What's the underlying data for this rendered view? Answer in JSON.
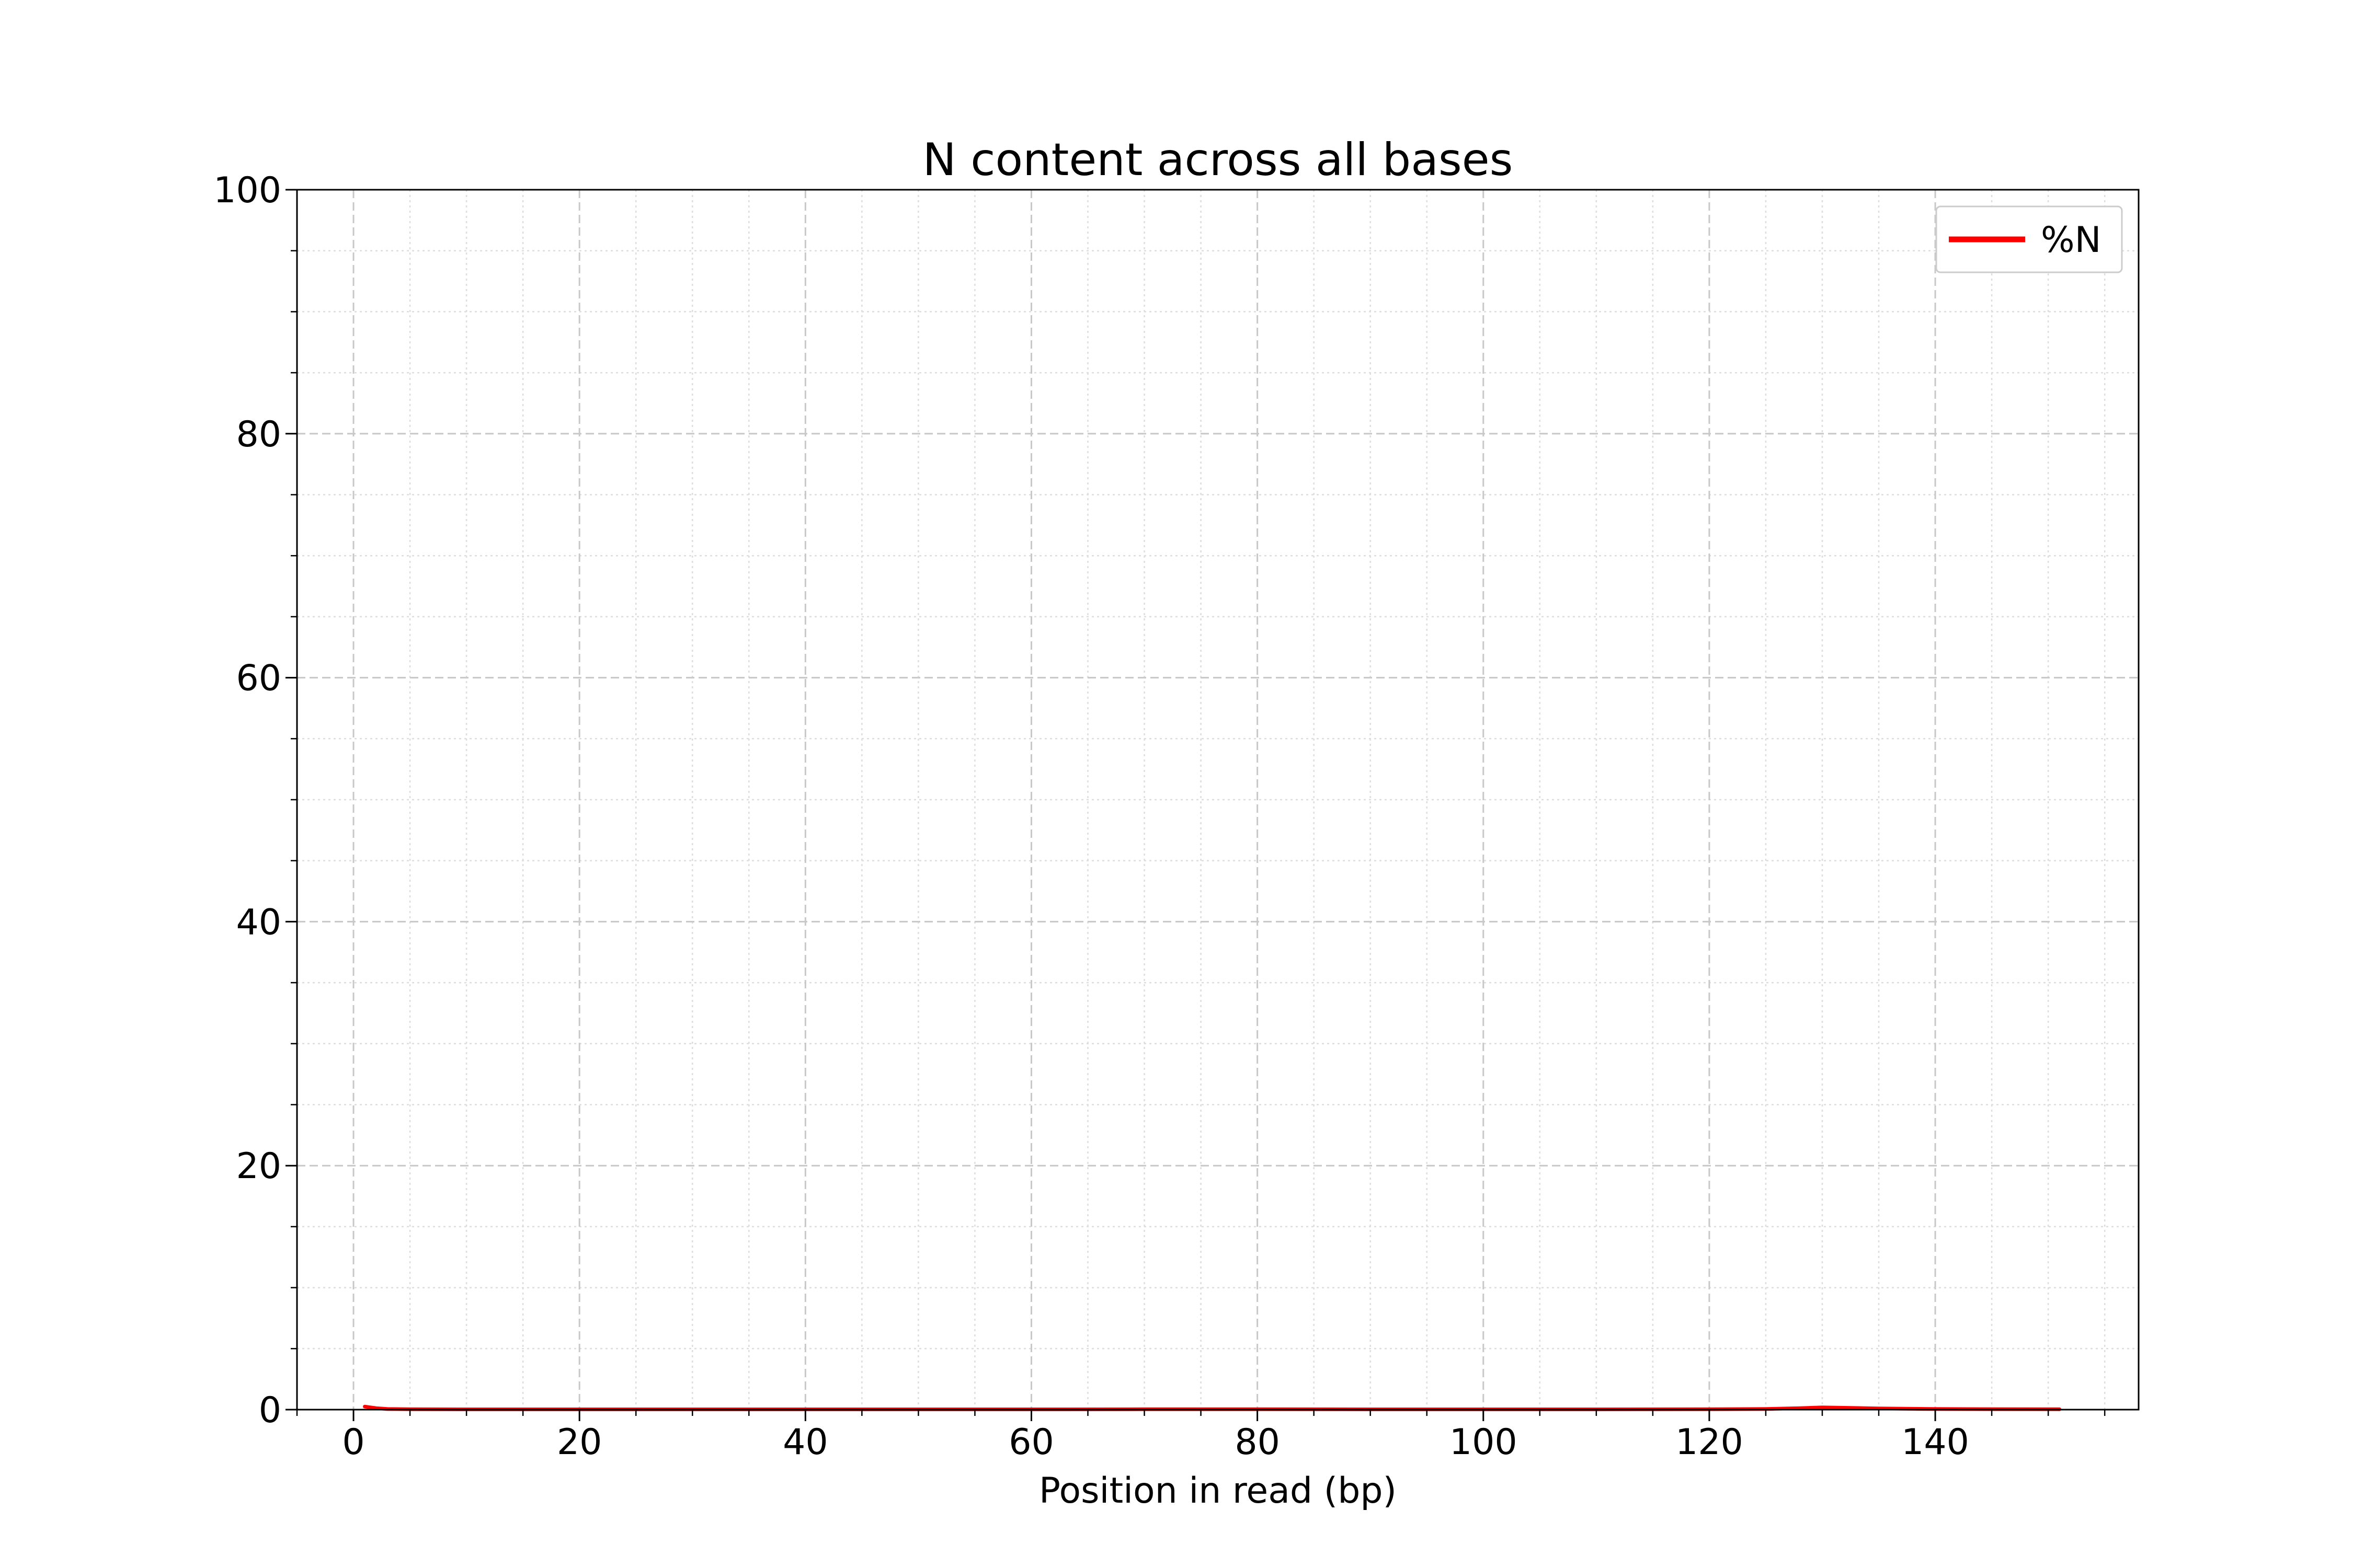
{
  "chart_data": {
    "type": "line",
    "title": "N content across all bases",
    "xlabel": "Position in read (bp)",
    "ylabel": "",
    "xlim": [
      -5,
      158
    ],
    "ylim": [
      0,
      100
    ],
    "x_ticks": [
      0,
      20,
      40,
      60,
      80,
      100,
      120,
      140
    ],
    "y_ticks": [
      0,
      20,
      40,
      60,
      80,
      100
    ],
    "x_tick_labels": [
      "0",
      "20",
      "40",
      "60",
      "80",
      "100",
      "120",
      "140"
    ],
    "y_tick_labels": [
      "0",
      "20",
      "40",
      "60",
      "80",
      "100"
    ],
    "x_minor_step": 5,
    "y_minor_step": 5,
    "grid": true,
    "legend_position": "top-right",
    "series": [
      {
        "name": "%N",
        "color": "#ff0000",
        "x": [
          1,
          2,
          3,
          5,
          10,
          20,
          30,
          40,
          50,
          60,
          70,
          80,
          90,
          100,
          110,
          120,
          125,
          128,
          130,
          132,
          135,
          140,
          145,
          150,
          151
        ],
        "y": [
          0.25,
          0.12,
          0.05,
          0.03,
          0.02,
          0.02,
          0.02,
          0.02,
          0.02,
          0.02,
          0.03,
          0.03,
          0.02,
          0.02,
          0.02,
          0.03,
          0.05,
          0.12,
          0.18,
          0.15,
          0.1,
          0.05,
          0.04,
          0.03,
          0.03
        ]
      }
    ]
  }
}
